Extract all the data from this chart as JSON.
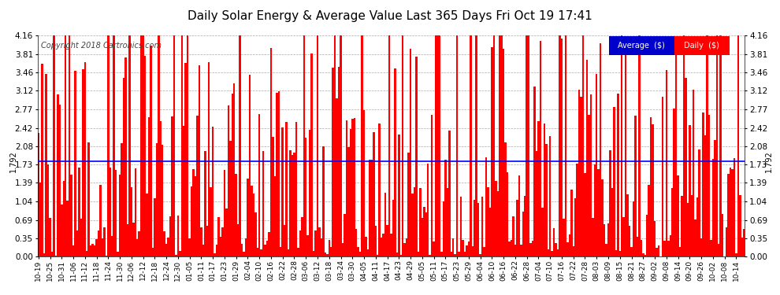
{
  "title": "Daily Solar Energy & Average Value Last 365 Days Fri Oct 19 17:41",
  "copyright": "Copyright 2018 Cartronics.com",
  "average_value": 1.792,
  "ylim": [
    0.0,
    4.16
  ],
  "yticks": [
    0.0,
    0.35,
    0.69,
    1.04,
    1.39,
    1.73,
    2.08,
    2.42,
    2.77,
    3.12,
    3.46,
    3.81,
    4.16
  ],
  "bar_color": "#ff0000",
  "avg_line_color": "#0000ff",
  "background_color": "#ffffff",
  "grid_color": "#aaaaaa",
  "title_color": "#000000",
  "legend_avg_bg": "#0000cc",
  "legend_daily_bg": "#ff0000",
  "legend_text_color": "#ffffff",
  "avg_label": "1.792",
  "x_labels": [
    "10-19",
    "10-25",
    "10-31",
    "11-06",
    "11-12",
    "11-18",
    "11-24",
    "11-30",
    "12-06",
    "12-12",
    "12-18",
    "12-24",
    "12-30",
    "01-05",
    "01-11",
    "01-17",
    "01-23",
    "01-29",
    "02-04",
    "02-10",
    "02-16",
    "02-22",
    "02-28",
    "03-06",
    "03-12",
    "03-18",
    "03-24",
    "03-30",
    "04-05",
    "04-11",
    "04-17",
    "04-23",
    "04-29",
    "05-05",
    "05-11",
    "05-17",
    "05-23",
    "05-29",
    "06-04",
    "06-10",
    "06-16",
    "06-22",
    "06-28",
    "07-04",
    "07-10",
    "07-16",
    "07-22",
    "07-28",
    "08-03",
    "08-09",
    "08-15",
    "08-21",
    "08-27",
    "09-02",
    "09-08",
    "09-14",
    "09-20",
    "09-26",
    "10-02",
    "10-08",
    "10-14"
  ],
  "n_bars": 365,
  "seed": 99
}
